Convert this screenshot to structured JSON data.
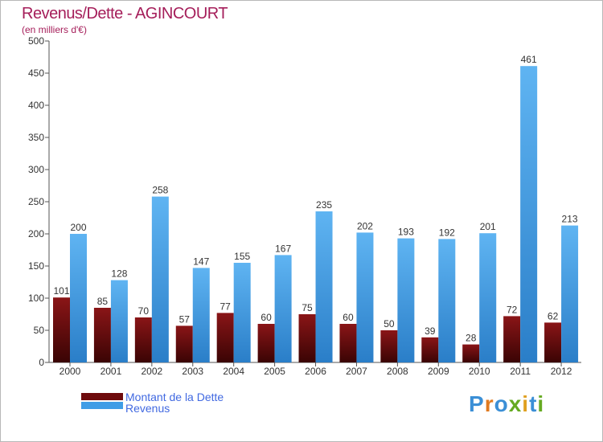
{
  "chart_data": {
    "type": "bar",
    "title": "Revenus/Dette - AGINCOURT",
    "subtitle": "(en milliers d'€)",
    "xlabel": "",
    "ylabel": "",
    "ylim": [
      0,
      500
    ],
    "yticks": [
      0,
      50,
      100,
      150,
      200,
      250,
      300,
      350,
      400,
      450,
      500
    ],
    "grid": false,
    "categories": [
      "2000",
      "2001",
      "2002",
      "2003",
      "2004",
      "2005",
      "2006",
      "2007",
      "2008",
      "2009",
      "2010",
      "2011",
      "2012"
    ],
    "series": [
      {
        "name": "Montant de la Dette",
        "color": "#6e0b0d",
        "values": [
          101,
          85,
          70,
          57,
          77,
          60,
          75,
          60,
          50,
          39,
          28,
          72,
          62
        ]
      },
      {
        "name": "Revenus",
        "color": "#3f9de6",
        "values": [
          200,
          128,
          258,
          147,
          155,
          167,
          235,
          202,
          193,
          192,
          201,
          461,
          213
        ]
      }
    ],
    "legend_position": "bottom-left"
  },
  "branding": {
    "logo_letters": [
      "P",
      "r",
      "o",
      "x",
      "i",
      "t",
      "i"
    ],
    "logo_colors": [
      "#3b8fd6",
      "#e07a20",
      "#3b8fd6",
      "#66aa22",
      "#e0a020",
      "#3b8fd6",
      "#66aa22"
    ]
  }
}
